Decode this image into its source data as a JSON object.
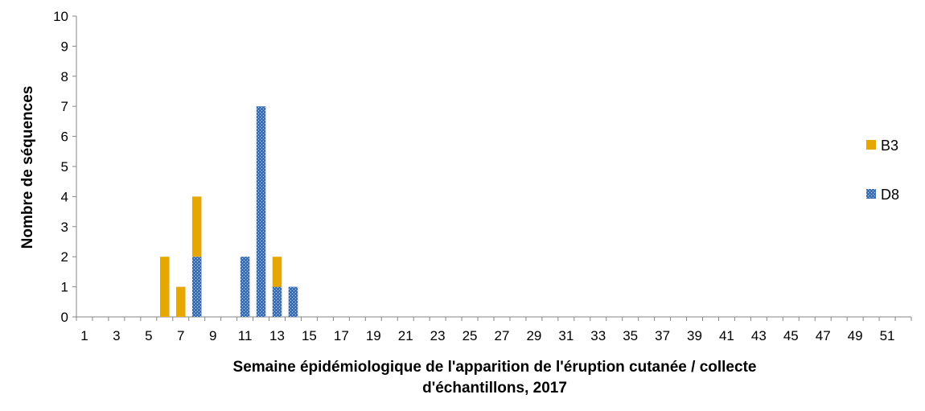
{
  "chart_data": {
    "type": "bar",
    "stacked": true,
    "x": [
      1,
      2,
      3,
      4,
      5,
      6,
      7,
      8,
      9,
      10,
      11,
      12,
      13,
      14,
      15,
      16,
      17,
      18,
      19,
      20,
      21,
      22,
      23,
      24,
      25,
      26,
      27,
      28,
      29,
      30,
      31,
      32,
      33,
      34,
      35,
      36,
      37,
      38,
      39,
      40,
      41,
      42,
      43,
      44,
      45,
      46,
      47,
      48,
      49,
      50,
      51,
      52
    ],
    "xticks_shown": [
      1,
      3,
      5,
      7,
      9,
      11,
      13,
      15,
      17,
      19,
      21,
      23,
      25,
      27,
      29,
      31,
      33,
      35,
      37,
      39,
      41,
      43,
      45,
      47,
      49,
      51
    ],
    "series": [
      {
        "name": "D8",
        "color": "#3f6fb0",
        "pattern": "dotted",
        "values": [
          0,
          0,
          0,
          0,
          0,
          0,
          0,
          2,
          0,
          0,
          2,
          7,
          1,
          1,
          0,
          0,
          0,
          0,
          0,
          0,
          0,
          0,
          0,
          0,
          0,
          0,
          0,
          0,
          0,
          0,
          0,
          0,
          0,
          0,
          0,
          0,
          0,
          0,
          0,
          0,
          0,
          0,
          0,
          0,
          0,
          0,
          0,
          0,
          0,
          0,
          0,
          0
        ]
      },
      {
        "name": "B3",
        "color": "#e6a800",
        "pattern": "solid",
        "values": [
          0,
          0,
          0,
          0,
          0,
          2,
          1,
          2,
          0,
          0,
          0,
          0,
          1,
          0,
          0,
          0,
          0,
          0,
          0,
          0,
          0,
          0,
          0,
          0,
          0,
          0,
          0,
          0,
          0,
          0,
          0,
          0,
          0,
          0,
          0,
          0,
          0,
          0,
          0,
          0,
          0,
          0,
          0,
          0,
          0,
          0,
          0,
          0,
          0,
          0,
          0,
          0
        ]
      }
    ],
    "xlabel": "Semaine épidémiologique de l'apparition de l'éruption cutanée / collecte d'échantillons, 2017",
    "xlabel_lines": [
      "Semaine épidémiologique de l'apparition de l'éruption cutanée / collecte",
      "d'échantillons, 2017"
    ],
    "ylabel": "Nombre de séquences",
    "ylim": [
      0,
      10
    ],
    "yticks": [
      0,
      1,
      2,
      3,
      4,
      5,
      6,
      7,
      8,
      9,
      10
    ],
    "legend": [
      {
        "name": "B3",
        "color": "#e6a800"
      },
      {
        "name": "D8",
        "color": "#3f6fb0"
      }
    ],
    "legend_position": "right",
    "grid": false
  }
}
